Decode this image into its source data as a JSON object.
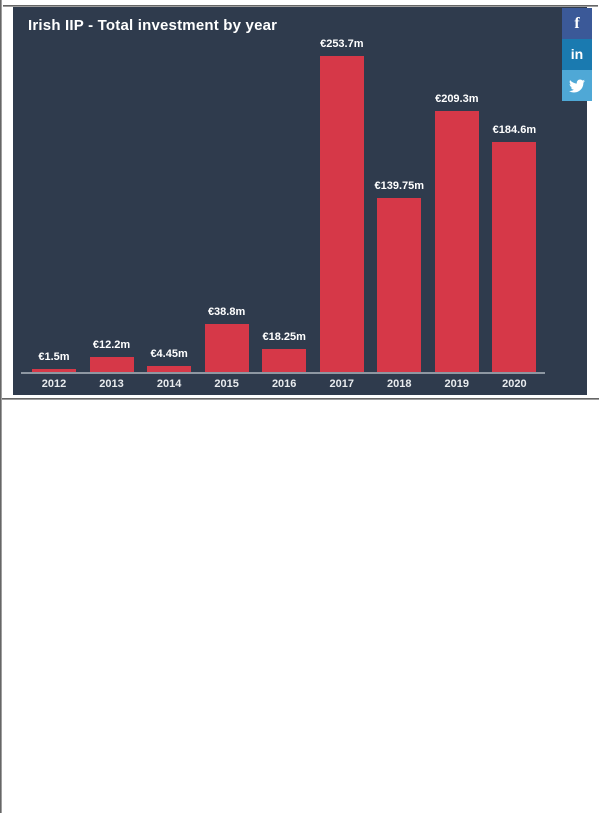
{
  "header": {
    "title": "Irish IIP - Total investment by year"
  },
  "social": {
    "facebook_glyph": "f",
    "linkedin_glyph": "in",
    "facebook_color": "#3b5998",
    "linkedin_color": "#1a7ab0",
    "twitter_color": "#4fa8d6"
  },
  "chart_data": {
    "type": "bar",
    "title": "Irish IIP - Total investment by year",
    "categories": [
      "2012",
      "2013",
      "2014",
      "2015",
      "2016",
      "2017",
      "2018",
      "2019",
      "2020"
    ],
    "values": [
      1.5,
      12.2,
      4.45,
      38.8,
      18.25,
      253.7,
      139.75,
      209.3,
      184.6
    ],
    "value_labels": [
      "€1.5m",
      "€12.2m",
      "€4.45m",
      "€38.8m",
      "€18.25m",
      "€253.7m",
      "€139.75m",
      "€209.3m",
      "€184.6m"
    ],
    "unit": "€m",
    "xlabel": "",
    "ylabel": "",
    "ylim": [
      0,
      260
    ],
    "grid": false,
    "legend": null,
    "bar_color": "#d63848",
    "background_color": "#2f3b4d",
    "label_color": "#ffffff",
    "axis_line_color": "#8e97a2"
  }
}
